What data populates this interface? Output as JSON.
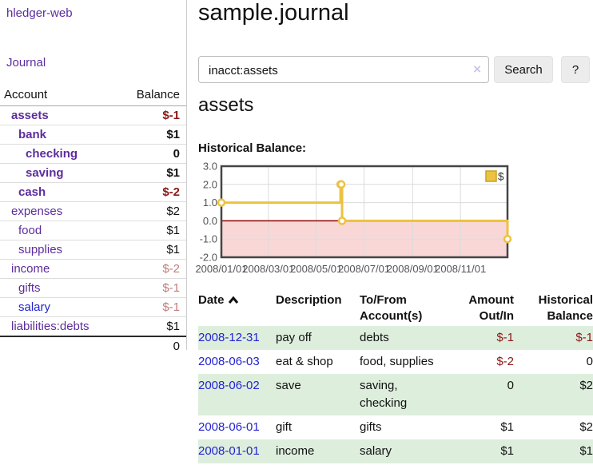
{
  "sidebar": {
    "brand": "hledger-web",
    "journal_link": "Journal",
    "table": {
      "account_header": "Account",
      "balance_header": "Balance",
      "total": "0"
    },
    "accounts": [
      {
        "name": "assets",
        "balance": "$-1",
        "level": 1,
        "bold": true,
        "name_color": "purple",
        "balance_color": "red"
      },
      {
        "name": "bank",
        "balance": "$1",
        "level": 2,
        "bold": true,
        "name_color": "purple",
        "balance_color": "black"
      },
      {
        "name": "checking",
        "balance": "0",
        "level": 3,
        "bold": true,
        "name_color": "purple",
        "balance_color": "black"
      },
      {
        "name": "saving",
        "balance": "$1",
        "level": 3,
        "bold": true,
        "name_color": "purple",
        "balance_color": "black"
      },
      {
        "name": "cash",
        "balance": "$-2",
        "level": 2,
        "bold": true,
        "name_color": "purple",
        "balance_color": "red"
      },
      {
        "name": "expenses",
        "balance": "$2",
        "level": 1,
        "bold": false,
        "name_color": "purple",
        "balance_color": "black"
      },
      {
        "name": "food",
        "balance": "$1",
        "level": 2,
        "bold": false,
        "name_color": "purple",
        "balance_color": "black"
      },
      {
        "name": "supplies",
        "balance": "$1",
        "level": 2,
        "bold": false,
        "name_color": "purple",
        "balance_color": "black"
      },
      {
        "name": "income",
        "balance": "$-2",
        "level": 1,
        "bold": false,
        "name_color": "purple",
        "balance_color": "rose"
      },
      {
        "name": "gifts",
        "balance": "$-1",
        "level": 2,
        "bold": false,
        "name_color": "purple",
        "balance_color": "rose"
      },
      {
        "name": "salary",
        "balance": "$-1",
        "level": 2,
        "bold": false,
        "name_color": "blue",
        "balance_color": "rose"
      },
      {
        "name": "liabilities:debts",
        "balance": "$1",
        "level": 1,
        "bold": false,
        "name_color": "purple",
        "balance_color": "black"
      }
    ]
  },
  "header": {
    "title": "sample.journal"
  },
  "search": {
    "query": "inacct:assets",
    "clear_icon": "×",
    "search_label": "Search",
    "help_label": "?"
  },
  "account_page": {
    "heading": "assets",
    "chart_title": "Historical Balance:"
  },
  "chart_data": {
    "type": "line",
    "style": "step",
    "title": "Historical Balance",
    "series": [
      {
        "name": "$",
        "color": "#edc240",
        "points": [
          [
            "2008/01/01",
            1
          ],
          [
            "2008/06/01",
            2
          ],
          [
            "2008/06/02",
            2
          ],
          [
            "2008/06/03",
            0
          ],
          [
            "2008/12/31",
            -1
          ]
        ]
      }
    ],
    "x_range": [
      "2008/01/01",
      "2008/12/31"
    ],
    "ylim": [
      -2,
      3
    ],
    "y_ticks": [
      3.0,
      2.0,
      1.0,
      0.0,
      -1.0,
      -2.0
    ],
    "x_ticks": [
      "2008/01/01",
      "2008/03/01",
      "2008/05/01",
      "2008/07/01",
      "2008/09/01",
      "2008/11/01"
    ],
    "legend": {
      "label": "$",
      "position": "top-right"
    },
    "grid": true,
    "colors": {
      "line": "#edc240",
      "marker_fill": "#ffffff",
      "legend_swatch_border": "#c9a227",
      "grid_line": "#dcdcdc",
      "border": "#454545",
      "zero_line": "#8b0000",
      "negative_region": "#f9d7d7",
      "tick_label": "#545454"
    }
  },
  "register": {
    "columns": [
      "Date",
      "Description",
      "To/From Account(s)",
      "Amount Out/In",
      "Historical Balance"
    ],
    "rows": [
      {
        "date": "2008-12-31",
        "description": "pay off",
        "accounts": [
          "debts"
        ],
        "amount": "$-1",
        "balance": "$-1"
      },
      {
        "date": "2008-06-03",
        "description": "eat & shop",
        "accounts": [
          "food, supplies"
        ],
        "amount": "$-2",
        "balance": "0"
      },
      {
        "date": "2008-06-02",
        "description": "save",
        "accounts": [
          "saving,",
          "checking"
        ],
        "amount": "0",
        "balance": "$2"
      },
      {
        "date": "2008-06-01",
        "description": "gift",
        "accounts": [
          "gifts"
        ],
        "amount": "$1",
        "balance": "$2"
      },
      {
        "date": "2008-01-01",
        "description": "income",
        "accounts": [
          "salary"
        ],
        "amount": "$1",
        "balance": "$1"
      }
    ]
  }
}
